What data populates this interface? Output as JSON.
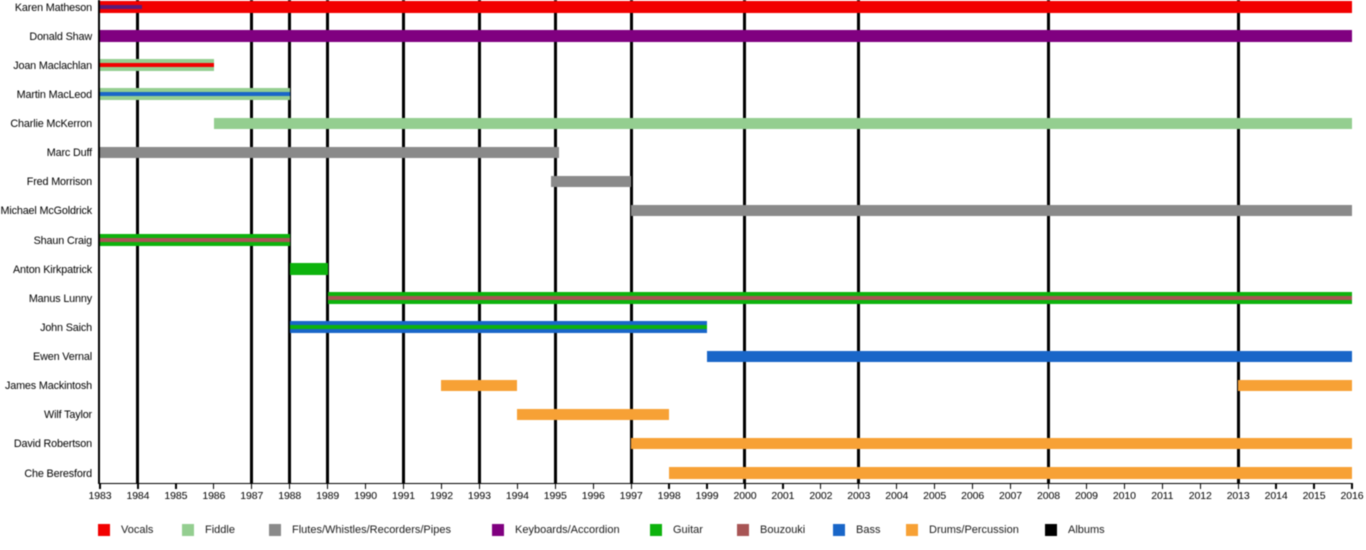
{
  "chart_data": {
    "type": "gantt",
    "description": "Band member timeline, 1983-2016",
    "x_axis": {
      "start": 1983,
      "end": 2016,
      "tick_interval": 1,
      "tick_labels": [
        "1983",
        "1984",
        "1985",
        "1986",
        "1987",
        "1988",
        "1989",
        "1990",
        "1991",
        "1992",
        "1993",
        "1994",
        "1995",
        "1996",
        "1997",
        "1998",
        "1999",
        "2000",
        "2001",
        "2002",
        "2003",
        "2004",
        "2005",
        "2006",
        "2007",
        "2008",
        "2009",
        "2010",
        "2011",
        "2012",
        "2013",
        "2014",
        "2015",
        "2016"
      ]
    },
    "instrument_colors": {
      "Vocals": "#f20000",
      "Fiddle": "#94ce90",
      "Flutes/Whistles/Recorders/Pipes": "#8a8a8a",
      "Keyboards/Accordion": "#800080",
      "Guitar": "#0db30d",
      "Bouzouki": "#a85555",
      "Bass": "#1966c8",
      "Drums/Percussion": "#f7a135",
      "Albums": "#000000"
    },
    "legend": [
      {
        "label": "Vocals",
        "color": "#f20000"
      },
      {
        "label": "Fiddle",
        "color": "#94ce90"
      },
      {
        "label": "Flutes/Whistles/Recorders/Pipes",
        "color": "#8a8a8a"
      },
      {
        "label": "Keyboards/Accordion",
        "color": "#800080"
      },
      {
        "label": "Guitar",
        "color": "#0db30d"
      },
      {
        "label": "Bouzouki",
        "color": "#a85555"
      },
      {
        "label": "Bass",
        "color": "#1966c8"
      },
      {
        "label": "Drums/Percussion",
        "color": "#f7a135"
      },
      {
        "label": "Albums",
        "color": "#000000"
      }
    ],
    "albums": {
      "label": "Albums",
      "color": "#000000",
      "years": [
        1984,
        1987,
        1988,
        1989,
        1991,
        1993,
        1995,
        1997,
        2000,
        2003,
        2008,
        2013
      ]
    },
    "members": [
      {
        "name": "Karen Matheson",
        "bars": [
          {
            "start": 1983,
            "end": 2016,
            "instrument": "Vocals"
          }
        ],
        "lines": [
          {
            "start": 1983,
            "end": 1984.1,
            "color": "#5a1c78"
          }
        ]
      },
      {
        "name": "Donald Shaw",
        "bars": [
          {
            "start": 1983,
            "end": 2016,
            "instrument": "Keyboards/Accordion"
          }
        ],
        "lines": []
      },
      {
        "name": "Joan Maclachlan",
        "bars": [
          {
            "start": 1983,
            "end": 1986,
            "instrument": "Fiddle"
          }
        ],
        "lines": [
          {
            "start": 1983,
            "end": 1986,
            "instrument": "Vocals"
          }
        ]
      },
      {
        "name": "Martin MacLeod",
        "bars": [
          {
            "start": 1983,
            "end": 1988,
            "instrument": "Fiddle"
          }
        ],
        "lines": [
          {
            "start": 1983,
            "end": 1988,
            "instrument": "Bass"
          }
        ]
      },
      {
        "name": "Charlie McKerron",
        "bars": [
          {
            "start": 1986,
            "end": 2016,
            "instrument": "Fiddle"
          }
        ],
        "lines": []
      },
      {
        "name": "Marc Duff",
        "bars": [
          {
            "start": 1983,
            "end": 1995.1,
            "instrument": "Flutes/Whistles/Recorders/Pipes"
          }
        ],
        "lines": []
      },
      {
        "name": "Fred Morrison",
        "bars": [
          {
            "start": 1994.9,
            "end": 1997,
            "instrument": "Flutes/Whistles/Recorders/Pipes"
          }
        ],
        "lines": []
      },
      {
        "name": "Michael McGoldrick",
        "bars": [
          {
            "start": 1997,
            "end": 2016,
            "instrument": "Flutes/Whistles/Recorders/Pipes"
          }
        ],
        "lines": []
      },
      {
        "name": "Shaun Craig",
        "bars": [
          {
            "start": 1983,
            "end": 1988,
            "instrument": "Guitar"
          }
        ],
        "lines": [
          {
            "start": 1983,
            "end": 1988,
            "instrument": "Bouzouki"
          }
        ]
      },
      {
        "name": "Anton Kirkpatrick",
        "bars": [
          {
            "start": 1988,
            "end": 1989,
            "instrument": "Guitar"
          }
        ],
        "lines": []
      },
      {
        "name": "Manus Lunny",
        "bars": [
          {
            "start": 1989,
            "end": 2016,
            "instrument": "Guitar"
          }
        ],
        "lines": [
          {
            "start": 1989,
            "end": 2016,
            "instrument": "Bouzouki"
          }
        ]
      },
      {
        "name": "John Saich",
        "bars": [
          {
            "start": 1988,
            "end": 1999,
            "instrument": "Bass"
          }
        ],
        "lines": [
          {
            "start": 1988,
            "end": 1999,
            "instrument": "Guitar"
          }
        ]
      },
      {
        "name": "Ewen Vernal",
        "bars": [
          {
            "start": 1999,
            "end": 2016,
            "instrument": "Bass"
          }
        ],
        "lines": []
      },
      {
        "name": "James Mackintosh",
        "bars": [
          {
            "start": 1992,
            "end": 1994,
            "instrument": "Drums/Percussion"
          },
          {
            "start": 2013,
            "end": 2016,
            "instrument": "Drums/Percussion"
          }
        ],
        "lines": []
      },
      {
        "name": "Wilf Taylor",
        "bars": [
          {
            "start": 1994,
            "end": 1998,
            "instrument": "Drums/Percussion"
          }
        ],
        "lines": []
      },
      {
        "name": "David Robertson",
        "bars": [
          {
            "start": 1997,
            "end": 2016,
            "instrument": "Drums/Percussion"
          }
        ],
        "lines": []
      },
      {
        "name": "Che Beresford",
        "bars": [
          {
            "start": 1998,
            "end": 2016,
            "instrument": "Drums/Percussion"
          }
        ],
        "lines": []
      }
    ]
  }
}
